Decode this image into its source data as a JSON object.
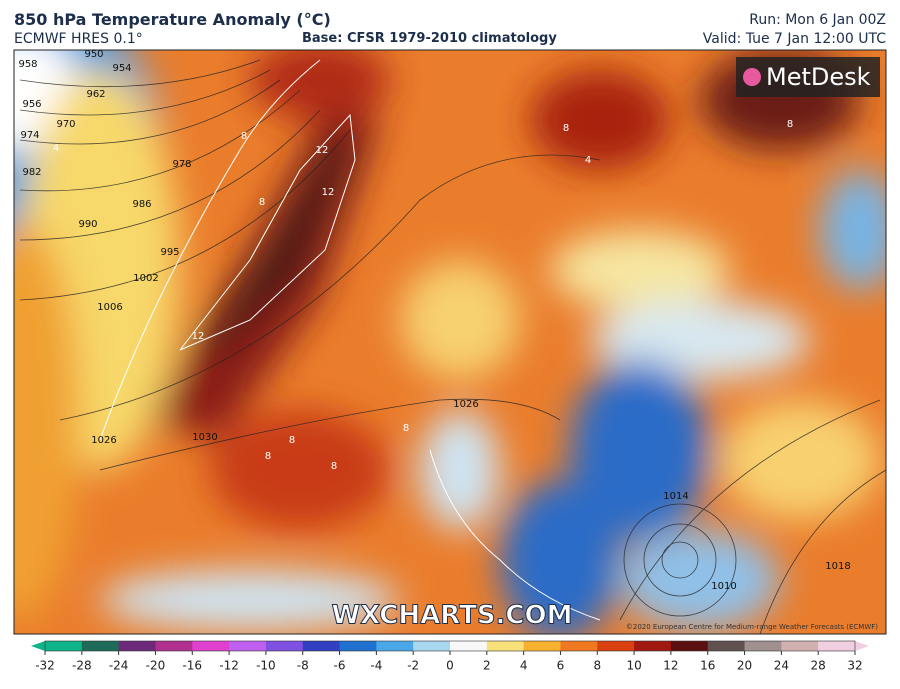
{
  "header": {
    "title": "850 hPa Temperature Anomaly (°C)",
    "model": "ECMWF HRES 0.1°",
    "base": "Base: CFSR 1979-2010 climatology",
    "run": "Run: Mon 6 Jan 00Z",
    "valid": "Valid: Tue 7 Jan 12:00 UTC"
  },
  "logo": "MetDesk",
  "watermark": "WXCHARTS.COM",
  "copyright": "©2020 European Centre for Medium-range Weather Forecasts (ECMWF)",
  "isobar_labels": [
    950,
    954,
    958,
    956,
    962,
    974,
    970,
    982,
    978,
    986,
    990,
    995,
    1002,
    1006,
    1026,
    1030,
    1026,
    1014,
    1010,
    1018
  ],
  "anomaly_labels": [
    12,
    12,
    12,
    8,
    8,
    8,
    8,
    8,
    8,
    8,
    8,
    4,
    4
  ],
  "colorbar": {
    "ticks": [
      -32,
      -28,
      -24,
      -20,
      -16,
      -12,
      -10,
      -8,
      -6,
      -4,
      -2,
      0,
      2,
      4,
      6,
      8,
      10,
      12,
      16,
      20,
      24,
      28,
      32
    ]
  }
}
